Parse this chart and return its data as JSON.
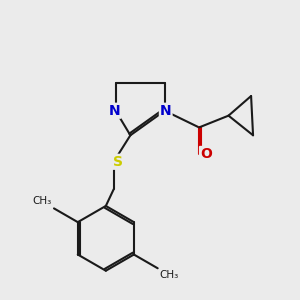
{
  "bg_color": "#ebebeb",
  "bond_color": "#1a1a1a",
  "N_color": "#0000cc",
  "O_color": "#cc0000",
  "S_color": "#cccc00",
  "line_width": 1.5,
  "font_size_atoms": 10,
  "xlim": [
    0,
    3
  ],
  "ylim": [
    0,
    3
  ],
  "figsize": [
    3.0,
    3.0
  ],
  "dpi": 100
}
